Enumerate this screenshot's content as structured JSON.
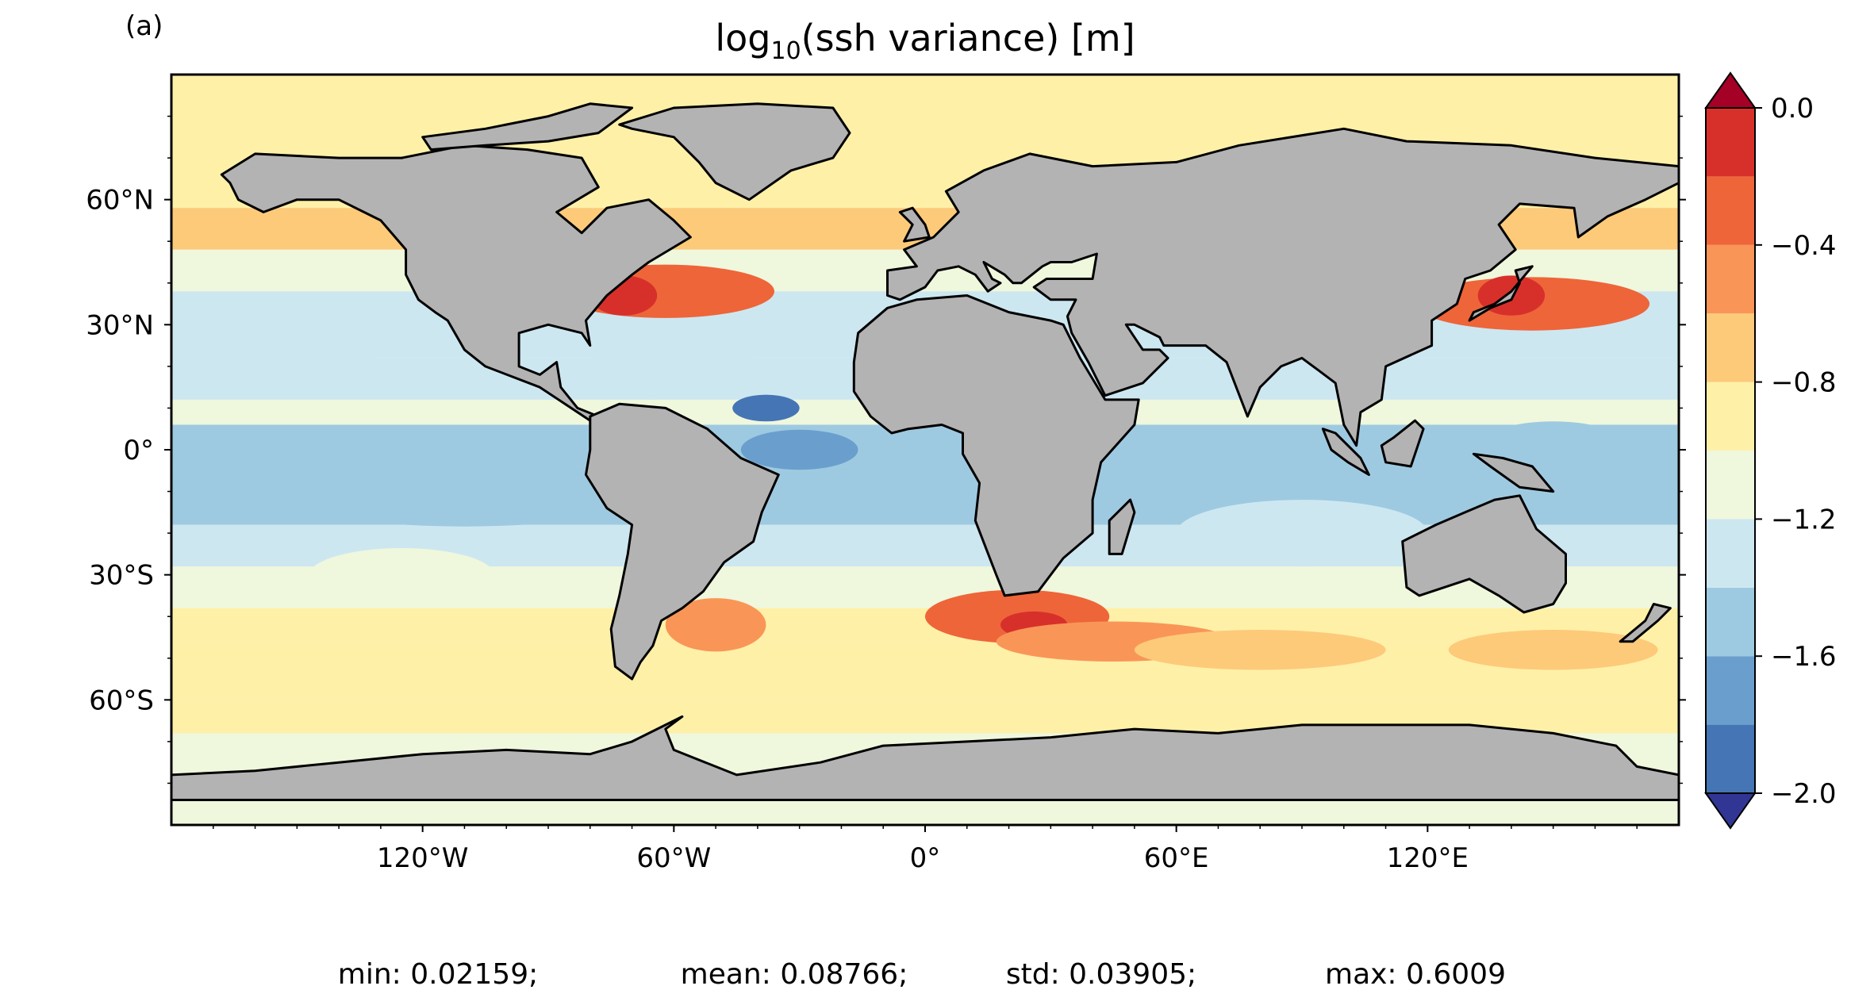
{
  "panel_label": "(a)",
  "title": {
    "main": "log",
    "sub": "10",
    "rest": "(ssh variance) [m]"
  },
  "lat_ticks": [
    {
      "label": "60°N",
      "value": 60
    },
    {
      "label": "30°N",
      "value": 30
    },
    {
      "label": "0°",
      "value": 0
    },
    {
      "label": "30°S",
      "value": -30
    },
    {
      "label": "60°S",
      "value": -60
    }
  ],
  "lon_ticks": [
    {
      "label": "120°W",
      "value": -120
    },
    {
      "label": "60°W",
      "value": -60
    },
    {
      "label": "0°",
      "value": 0
    },
    {
      "label": "60°E",
      "value": 60
    },
    {
      "label": "120°E",
      "value": 120
    }
  ],
  "colorbar": {
    "levels": [
      -2.0,
      -1.8,
      -1.6,
      -1.4,
      -1.2,
      -1.0,
      -0.8,
      -0.6,
      -0.4,
      -0.2,
      0.0
    ],
    "colors": [
      "#4575b4",
      "#6a9fcd",
      "#9ecae1",
      "#cde7f1",
      "#eff7dd",
      "#fff0a8",
      "#fdca7a",
      "#f99657",
      "#ee6539",
      "#d7302b"
    ],
    "under_color": "#313695",
    "over_color": "#a50026",
    "tick_labels": [
      {
        "label": "0.0",
        "value": 0.0
      },
      {
        "label": "−0.4",
        "value": -0.4
      },
      {
        "label": "−0.8",
        "value": -0.8
      },
      {
        "label": "−1.2",
        "value": -1.2
      },
      {
        "label": "−1.6",
        "value": -1.6
      },
      {
        "label": "−2.0",
        "value": -2.0
      }
    ]
  },
  "colors": {
    "land": "#b3b3b3",
    "coast": "#000000",
    "ocean_base": "#eff7dd"
  },
  "stats": {
    "min": "min: 0.02159;",
    "mean": "mean: 0.08766;",
    "std": "std: 0.03905;",
    "max": "max: 0.6009"
  },
  "map": {
    "projection": "equirectangular",
    "lon_range": [
      -180,
      180
    ],
    "lat_range": [
      -90,
      90
    ]
  }
}
